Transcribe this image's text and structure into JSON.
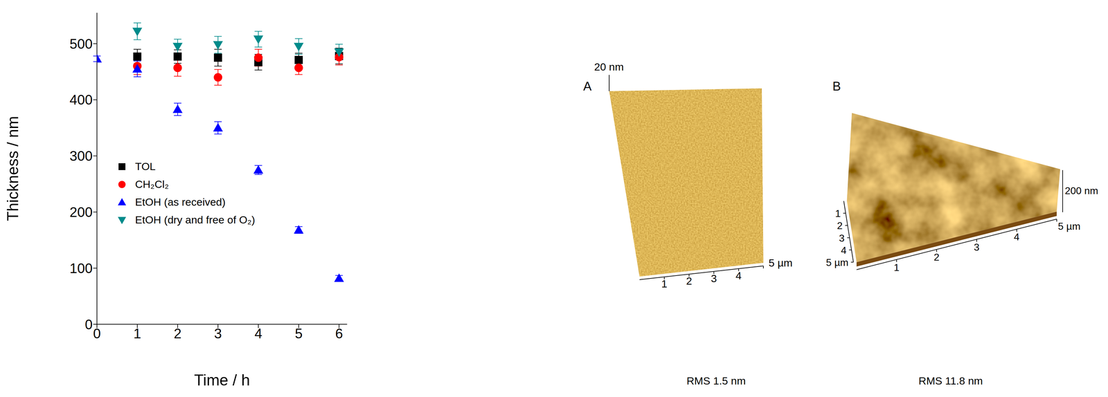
{
  "chart_data": {
    "type": "scatter",
    "x_label": "Time / h",
    "y_label": "Thickness / nm",
    "xlim": [
      0,
      6.2
    ],
    "xticks": [
      0,
      1,
      2,
      3,
      4,
      5,
      6
    ],
    "ylim": [
      0,
      555
    ],
    "yticks": [
      0,
      100,
      200,
      300,
      400,
      500
    ],
    "grid": false,
    "legend": "lower left",
    "x": [
      0,
      1,
      2,
      3,
      4,
      5,
      6
    ],
    "series": [
      {
        "name": "TOL",
        "color": "#000000",
        "marker": "square",
        "values": [
          null,
          477,
          477,
          475,
          467,
          471,
          478
        ],
        "errors": [
          null,
          13,
          12,
          15,
          14,
          12,
          14
        ]
      },
      {
        "name": "CH₂Cl₂",
        "color": "#ff0000",
        "marker": "circle",
        "values": [
          null,
          460,
          457,
          440,
          475,
          457,
          476
        ],
        "errors": [
          null,
          15,
          15,
          14,
          15,
          12,
          14
        ]
      },
      {
        "name": "EtOH (as received)",
        "color": "#0000ff",
        "marker": "triangle-up",
        "values": [
          473,
          455,
          383,
          350,
          275,
          168,
          82
        ],
        "errors": [
          5,
          14,
          11,
          11,
          8,
          6,
          5
        ]
      },
      {
        "name": "EtOH (dry and free of O₂)",
        "color": "#008b8b",
        "marker": "triangle-down",
        "values": [
          null,
          522,
          495,
          498,
          508,
          495,
          485
        ],
        "errors": [
          null,
          15,
          13,
          15,
          14,
          14,
          14
        ]
      }
    ]
  },
  "afm_images": [
    {
      "label": "A",
      "z_label": "20 nm",
      "x_tick_labels": [
        "1",
        "2",
        "3",
        "4",
        "5 µm"
      ],
      "caption": "RMS 1.5 nm"
    },
    {
      "label": "B",
      "z_label": "200 nm",
      "x_tick_labels": [
        "1",
        "2",
        "3",
        "4",
        "5 µm"
      ],
      "y_tick_labels": [
        "1",
        "2",
        "3",
        "4",
        "5 µm"
      ],
      "caption": "RMS 11.8 nm"
    }
  ]
}
